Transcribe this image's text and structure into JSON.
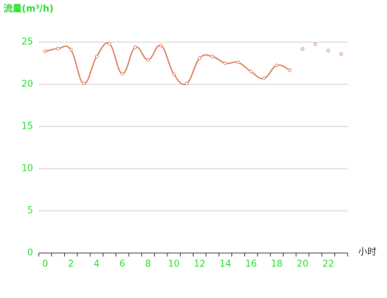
{
  "chart_data": {
    "type": "line",
    "y_axis_title": "流量(m³/h)",
    "x_axis_title": "小时",
    "categories": [
      0,
      null,
      2,
      null,
      4,
      null,
      6,
      null,
      8,
      null,
      10,
      null,
      12,
      null,
      14,
      null,
      16,
      null,
      18,
      null,
      20,
      null,
      22,
      null
    ],
    "series": [
      {
        "color": "#e08a6c",
        "smooth": true,
        "show_line": true,
        "values": [
          23.9,
          24.25,
          24.1,
          20.1,
          23.3,
          24.8,
          21.25,
          24.4,
          22.9,
          24.6,
          21.2,
          20.1,
          23.1,
          23.3,
          22.5,
          22.6,
          21.5,
          20.7,
          22.25,
          21.7,
          null,
          null,
          null,
          null
        ]
      },
      {
        "color": "#e08a6c",
        "smooth": false,
        "show_line": false,
        "values": [
          null,
          null,
          null,
          null,
          null,
          null,
          null,
          null,
          null,
          null,
          null,
          null,
          null,
          null,
          null,
          null,
          null,
          null,
          null,
          null,
          24.2,
          24.75,
          24.0,
          23.6
        ]
      }
    ],
    "ylim": [
      0,
      25
    ],
    "yticks": [
      0,
      5,
      10,
      15,
      20,
      25
    ],
    "grid": true,
    "tick_label_color": "#33dd33"
  }
}
